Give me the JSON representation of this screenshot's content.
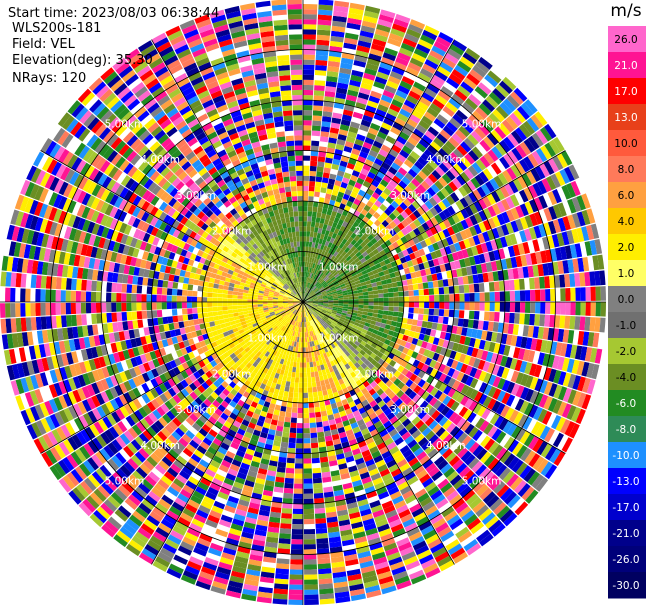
{
  "header": {
    "start_time": "Start time: 2023/08/03 06:38:44",
    "site": "WLS200s-181",
    "field": "Field: VEL",
    "elevation": "Elevation(deg): 35.30",
    "nrays": "NRays: 120"
  },
  "chart_data": {
    "type": "ppi",
    "unit": "m/s",
    "field": "VEL",
    "elevation_deg": 35.3,
    "nrays": 120,
    "max_range_km": 6,
    "range_ring_labels": [
      "1.00km",
      "2.00km",
      "3.00km",
      "4.00km",
      "5.00km"
    ],
    "range_rings_km": [
      1,
      2,
      3,
      4,
      5
    ],
    "colorbar": {
      "ticks": [
        "26.0",
        "21.0",
        "17.0",
        "13.0",
        "10.0",
        "8.0",
        "6.0",
        "4.0",
        "2.0",
        "1.0",
        "0.0",
        "-1.0",
        "-2.0",
        "-4.0",
        "-6.0",
        "-8.0",
        "-10.0",
        "-13.0",
        "-17.0",
        "-21.0",
        "-26.0",
        "-30.0"
      ],
      "colors": [
        "#ff66cc",
        "#ff1493",
        "#ff0000",
        "#e8401a",
        "#ff5a3c",
        "#ff7a5a",
        "#ffa040",
        "#ffc800",
        "#ffee00",
        "#ffff66",
        "#808080",
        "#707070",
        "#a6c832",
        "#6b8e23",
        "#228b22",
        "#2e8b57",
        "#1e90ff",
        "#0000ff",
        "#0000cd",
        "#00008b",
        "#00007a",
        "#000060"
      ]
    },
    "valid_region_km": 2.0,
    "colors_noise": [
      "#ff1493",
      "#ff66cc",
      "#0000ff",
      "#00008b",
      "#ff0000",
      "#ffee00",
      "#228b22",
      "#6b8e23",
      "#ffa040",
      "#808080",
      "#1e90ff",
      "#ff7a5a",
      "#a6c832",
      "#0000cd"
    ]
  }
}
